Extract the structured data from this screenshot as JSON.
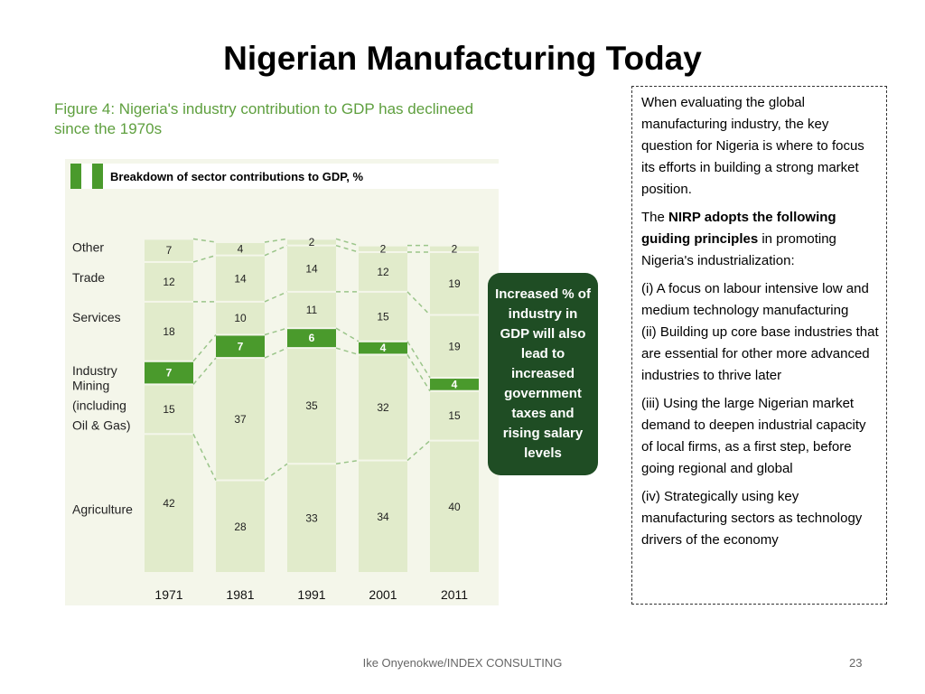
{
  "slide": {
    "title": "Nigerian Manufacturing Today",
    "footer_credit": "Ike Onyenokwe/INDEX CONSULTING",
    "page_number": "23"
  },
  "figure": {
    "caption_line1": "Figure 4: Nigeria's industry contribution to GDP has declineed",
    "caption_line2": "since the 1970s"
  },
  "callout": {
    "text": "Increased % of industry in GDP will also lead to increased government taxes and rising salary levels"
  },
  "textbox": {
    "p1": "When evaluating the global manufacturing industry, the key question for Nigeria is  where to focus its efforts in building a strong market position.",
    "p2_prefix": "The ",
    "p2_bold": "NIRP adopts the following guiding principles",
    "p2_suffix": " in promoting Nigeria's industrialization:",
    "p3_line1": "(i) A focus on labour intensive low and medium technology manufacturing",
    "p3_line2": "(ii) Building up core base industries that are essential for other more advanced industries to thrive later",
    "p4": "(iii) Using the large Nigerian market demand to deepen industrial capacity of local firms, as a first step, before going regional and global",
    "p5": "(iv) Strategically using key manufacturing sectors as technology drivers of the economy"
  },
  "chart_data": {
    "type": "bar",
    "stacked": true,
    "title": "Breakdown of sector contributions to GDP, %",
    "categories": [
      "1971",
      "1981",
      "1991",
      "2001",
      "2011"
    ],
    "series": [
      {
        "name": "Agriculture",
        "values": [
          42,
          28,
          33,
          34,
          40
        ]
      },
      {
        "name": "Mining (including Oil & Gas)",
        "values": [
          15,
          37,
          35,
          32,
          15
        ]
      },
      {
        "name": "Industry",
        "values": [
          7,
          7,
          6,
          4,
          4
        ],
        "color": "#4a9a2c"
      },
      {
        "name": "Services",
        "values": [
          18,
          10,
          11,
          15,
          19
        ]
      },
      {
        "name": "Trade",
        "values": [
          12,
          14,
          14,
          12,
          19
        ]
      },
      {
        "name": "Other",
        "values": [
          7,
          4,
          2,
          2,
          2
        ]
      }
    ],
    "legend_labels": [
      "Other",
      "Trade",
      "Services",
      "Industry",
      "Mining",
      "(including",
      "Oil & Gas)",
      "Agriculture"
    ],
    "colors": {
      "segment": "#e1ebcb",
      "industry": "#4a9a2c",
      "header_bar": "#4a9a2c",
      "callout": "#1f4d24"
    }
  }
}
